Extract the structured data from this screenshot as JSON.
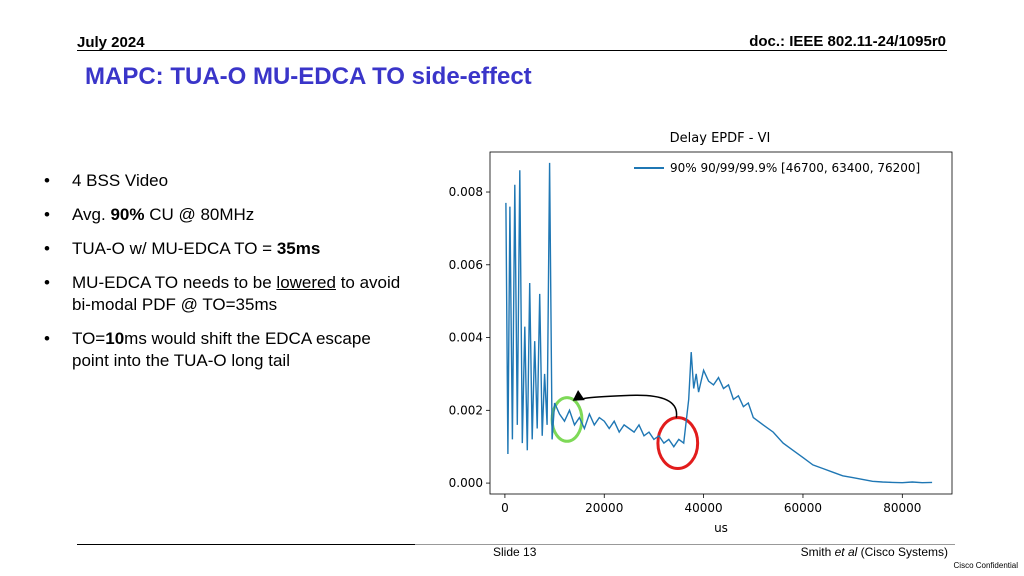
{
  "header": {
    "date": "July 2024",
    "doc": "doc.: IEEE 802.11-24/1095r0"
  },
  "title": "MAPC: TUA-O MU-EDCA TO side-effect",
  "bullets": [
    {
      "pre": "4 BSS Video",
      "bold": "",
      "post": "",
      "link": "",
      "tail": ""
    },
    {
      "pre": "Avg. ",
      "bold": "90%",
      "post": " CU @ 80MHz",
      "link": "",
      "tail": ""
    },
    {
      "pre": "TUA-O w/ MU-EDCA TO = ",
      "bold": "35ms",
      "post": "",
      "link": "",
      "tail": ""
    },
    {
      "pre": "MU-EDCA TO needs to be ",
      "bold": "",
      "post": "",
      "link": "lowered",
      "tail": " to avoid bi-modal PDF @ TO=35ms"
    },
    {
      "pre": "TO=",
      "bold": "10",
      "post": "ms would shift the EDCA escape point into the TUA-O long tail",
      "link": "",
      "tail": ""
    }
  ],
  "chart_data": {
    "type": "line",
    "title": "Delay EPDF - VI",
    "xlabel": "us",
    "ylabel": "",
    "xlim": [
      -3000,
      90000
    ],
    "ylim": [
      -0.0003,
      0.0091
    ],
    "xticks": [
      0,
      20000,
      40000,
      60000,
      80000
    ],
    "xtick_labels": [
      "0",
      "20000",
      "40000",
      "60000",
      "80000"
    ],
    "yticks": [
      0.0,
      0.002,
      0.004,
      0.006,
      0.008
    ],
    "ytick_labels": [
      "0.000",
      "0.002",
      "0.004",
      "0.006",
      "0.008"
    ],
    "legend_position": "top-right",
    "series": [
      {
        "name": "90% 90/99/99.9% [46700, 63400, 76200]",
        "color": "#1f77b4",
        "x": [
          200,
          600,
          1000,
          1500,
          2000,
          2500,
          3000,
          3500,
          4000,
          4500,
          5000,
          5500,
          6000,
          6500,
          7000,
          7500,
          8000,
          8500,
          9000,
          9500,
          10000,
          11000,
          12000,
          13000,
          14000,
          15000,
          16000,
          17000,
          18000,
          19000,
          20000,
          21000,
          22000,
          23000,
          24000,
          25000,
          26000,
          27000,
          28000,
          29000,
          30000,
          31000,
          32000,
          33000,
          34000,
          35000,
          36000,
          37000,
          37500,
          38000,
          38500,
          39000,
          40000,
          41000,
          42000,
          43000,
          44000,
          45000,
          46000,
          47000,
          48000,
          49000,
          50000,
          52000,
          54000,
          56000,
          58000,
          60000,
          62000,
          64000,
          66000,
          68000,
          70000,
          72000,
          74000,
          76000,
          78000,
          80000,
          82000,
          84000,
          86000
        ],
        "y": [
          0.0077,
          0.0008,
          0.0076,
          0.0012,
          0.0082,
          0.0016,
          0.0086,
          0.0011,
          0.0043,
          0.0009,
          0.0055,
          0.0012,
          0.0039,
          0.0015,
          0.0052,
          0.0013,
          0.003,
          0.0016,
          0.0088,
          0.0012,
          0.0022,
          0.0019,
          0.0017,
          0.002,
          0.0016,
          0.0018,
          0.0015,
          0.0019,
          0.0016,
          0.0018,
          0.0017,
          0.0015,
          0.0017,
          0.0014,
          0.0016,
          0.0015,
          0.0014,
          0.0016,
          0.0013,
          0.0014,
          0.0012,
          0.0013,
          0.0011,
          0.0012,
          0.001,
          0.0012,
          0.0011,
          0.0023,
          0.0036,
          0.0026,
          0.003,
          0.0025,
          0.0031,
          0.0028,
          0.0027,
          0.0029,
          0.0026,
          0.0027,
          0.0023,
          0.0024,
          0.0021,
          0.0022,
          0.0018,
          0.0016,
          0.0014,
          0.0011,
          0.0009,
          0.0007,
          0.0005,
          0.0004,
          0.0003,
          0.0002,
          0.00015,
          0.0001,
          5e-05,
          3e-05,
          2e-05,
          1e-05,
          3e-05,
          1e-05,
          2e-05
        ]
      }
    ],
    "annotations": [
      {
        "type": "ellipse",
        "color": "#7ed957",
        "cx": 12500,
        "cy": 0.00175,
        "rx": 3000,
        "ry": 0.0006
      },
      {
        "type": "ellipse",
        "color": "#e21c1c",
        "cx": 34800,
        "cy": 0.0011,
        "rx": 4000,
        "ry": 0.0007
      },
      {
        "type": "arrow",
        "color": "#000000",
        "from": [
          34500,
          0.0018
        ],
        "to": [
          15800,
          0.0023
        ]
      }
    ]
  },
  "footer": {
    "slide": "Slide 13",
    "author_pre": "Smith ",
    "author_em": "et al",
    "author_post": " (Cisco Systems)",
    "confidential": "Cisco Confidential"
  }
}
